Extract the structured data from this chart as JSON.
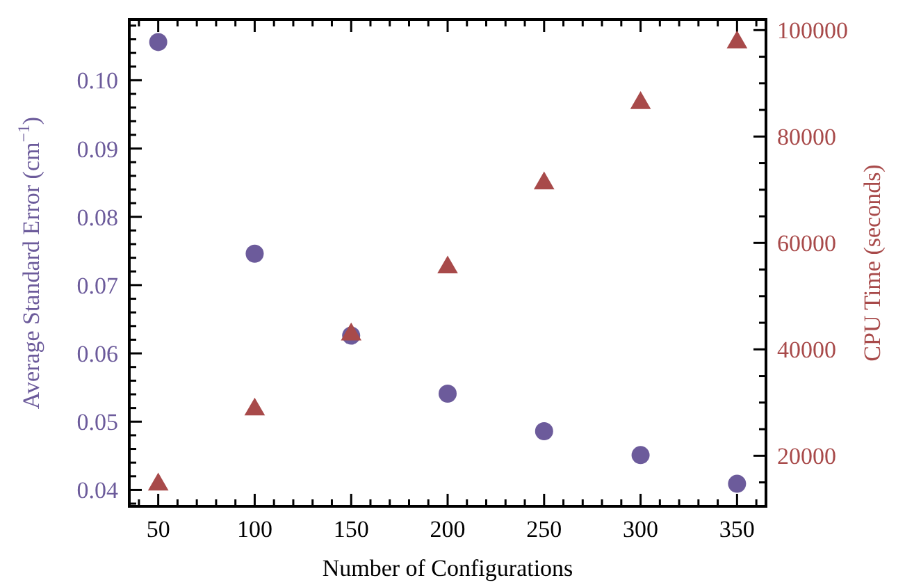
{
  "chart_data": {
    "type": "scatter",
    "xlabel": "Number of Configurations",
    "ylabel": "Average Standard Error (cm$^{−1}$)",
    "y2label": "CPU Time (seconds)",
    "x": [
      50,
      100,
      150,
      200,
      250,
      300,
      350
    ],
    "xlim": [
      35,
      365
    ],
    "ylim": [
      0.0376,
      0.1089
    ],
    "y2lim": [
      10500,
      102000
    ],
    "xticks": [
      {
        "value": 40,
        "label": null
      },
      50,
      {
        "value": 60,
        "label": null
      },
      {
        "value": 70,
        "label": null
      },
      {
        "value": 80,
        "label": null
      },
      {
        "value": 90,
        "label": null
      },
      100,
      {
        "value": 110,
        "label": null
      },
      {
        "value": 120,
        "label": null
      },
      {
        "value": 130,
        "label": null
      },
      {
        "value": 140,
        "label": null
      },
      150,
      {
        "value": 160,
        "label": null
      },
      {
        "value": 170,
        "label": null
      },
      {
        "value": 180,
        "label": null
      },
      {
        "value": 190,
        "label": null
      },
      200,
      {
        "value": 210,
        "label": null
      },
      {
        "value": 220,
        "label": null
      },
      {
        "value": 230,
        "label": null
      },
      {
        "value": 240,
        "label": null
      },
      250,
      {
        "value": 260,
        "label": null
      },
      {
        "value": 270,
        "label": null
      },
      {
        "value": 280,
        "label": null
      },
      {
        "value": 290,
        "label": null
      },
      300,
      {
        "value": 310,
        "label": null
      },
      {
        "value": 320,
        "label": null
      },
      {
        "value": 330,
        "label": null
      },
      {
        "value": 340,
        "label": null
      },
      350,
      {
        "value": 360,
        "label": null
      }
    ],
    "yticks": [
      {
        "value": 0.038,
        "label": null
      },
      {
        "value": 0.04,
        "label": "0.04"
      },
      {
        "value": 0.042,
        "label": null
      },
      {
        "value": 0.044,
        "label": null
      },
      {
        "value": 0.046,
        "label": null
      },
      {
        "value": 0.048,
        "label": null
      },
      {
        "value": 0.05,
        "label": "0.05"
      },
      {
        "value": 0.052,
        "label": null
      },
      {
        "value": 0.054,
        "label": null
      },
      {
        "value": 0.056,
        "label": null
      },
      {
        "value": 0.058,
        "label": null
      },
      {
        "value": 0.06,
        "label": "0.06"
      },
      {
        "value": 0.062,
        "label": null
      },
      {
        "value": 0.064,
        "label": null
      },
      {
        "value": 0.066,
        "label": null
      },
      {
        "value": 0.068,
        "label": null
      },
      {
        "value": 0.07,
        "label": "0.07"
      },
      {
        "value": 0.072,
        "label": null
      },
      {
        "value": 0.074,
        "label": null
      },
      {
        "value": 0.076,
        "label": null
      },
      {
        "value": 0.078,
        "label": null
      },
      {
        "value": 0.08,
        "label": "0.08"
      },
      {
        "value": 0.082,
        "label": null
      },
      {
        "value": 0.084,
        "label": null
      },
      {
        "value": 0.086,
        "label": null
      },
      {
        "value": 0.088,
        "label": null
      },
      {
        "value": 0.09,
        "label": "0.09"
      },
      {
        "value": 0.092,
        "label": null
      },
      {
        "value": 0.094,
        "label": null
      },
      {
        "value": 0.096,
        "label": null
      },
      {
        "value": 0.098,
        "label": null
      },
      {
        "value": 0.1,
        "label": "0.10"
      },
      {
        "value": 0.102,
        "label": null
      },
      {
        "value": 0.104,
        "label": null
      },
      {
        "value": 0.106,
        "label": null
      },
      {
        "value": 0.108,
        "label": null
      }
    ],
    "y2ticks": [
      {
        "value": 15000,
        "label": null
      },
      20000,
      {
        "value": 25000,
        "label": null
      },
      {
        "value": 30000,
        "label": null
      },
      {
        "value": 35000,
        "label": null
      },
      40000,
      {
        "value": 45000,
        "label": null
      },
      {
        "value": 50000,
        "label": null
      },
      {
        "value": 55000,
        "label": null
      },
      60000,
      {
        "value": 65000,
        "label": null
      },
      {
        "value": 70000,
        "label": null
      },
      {
        "value": 75000,
        "label": null
      },
      80000,
      {
        "value": 85000,
        "label": null
      },
      {
        "value": 90000,
        "label": null
      },
      {
        "value": 95000,
        "label": null
      },
      100000
    ],
    "series": [
      {
        "color": "#6c5b9b",
        "marker": "circle",
        "values": [
          0.1056,
          0.0746,
          0.0626,
          0.0541,
          0.0486,
          0.0451,
          0.0409
        ]
      },
      {
        "color": "#a84a4a",
        "marker": "triangle",
        "axis": "y2",
        "values": [
          14600,
          28700,
          42800,
          55400,
          71200,
          86300,
          97700
        ]
      }
    ],
    "grid": false
  }
}
